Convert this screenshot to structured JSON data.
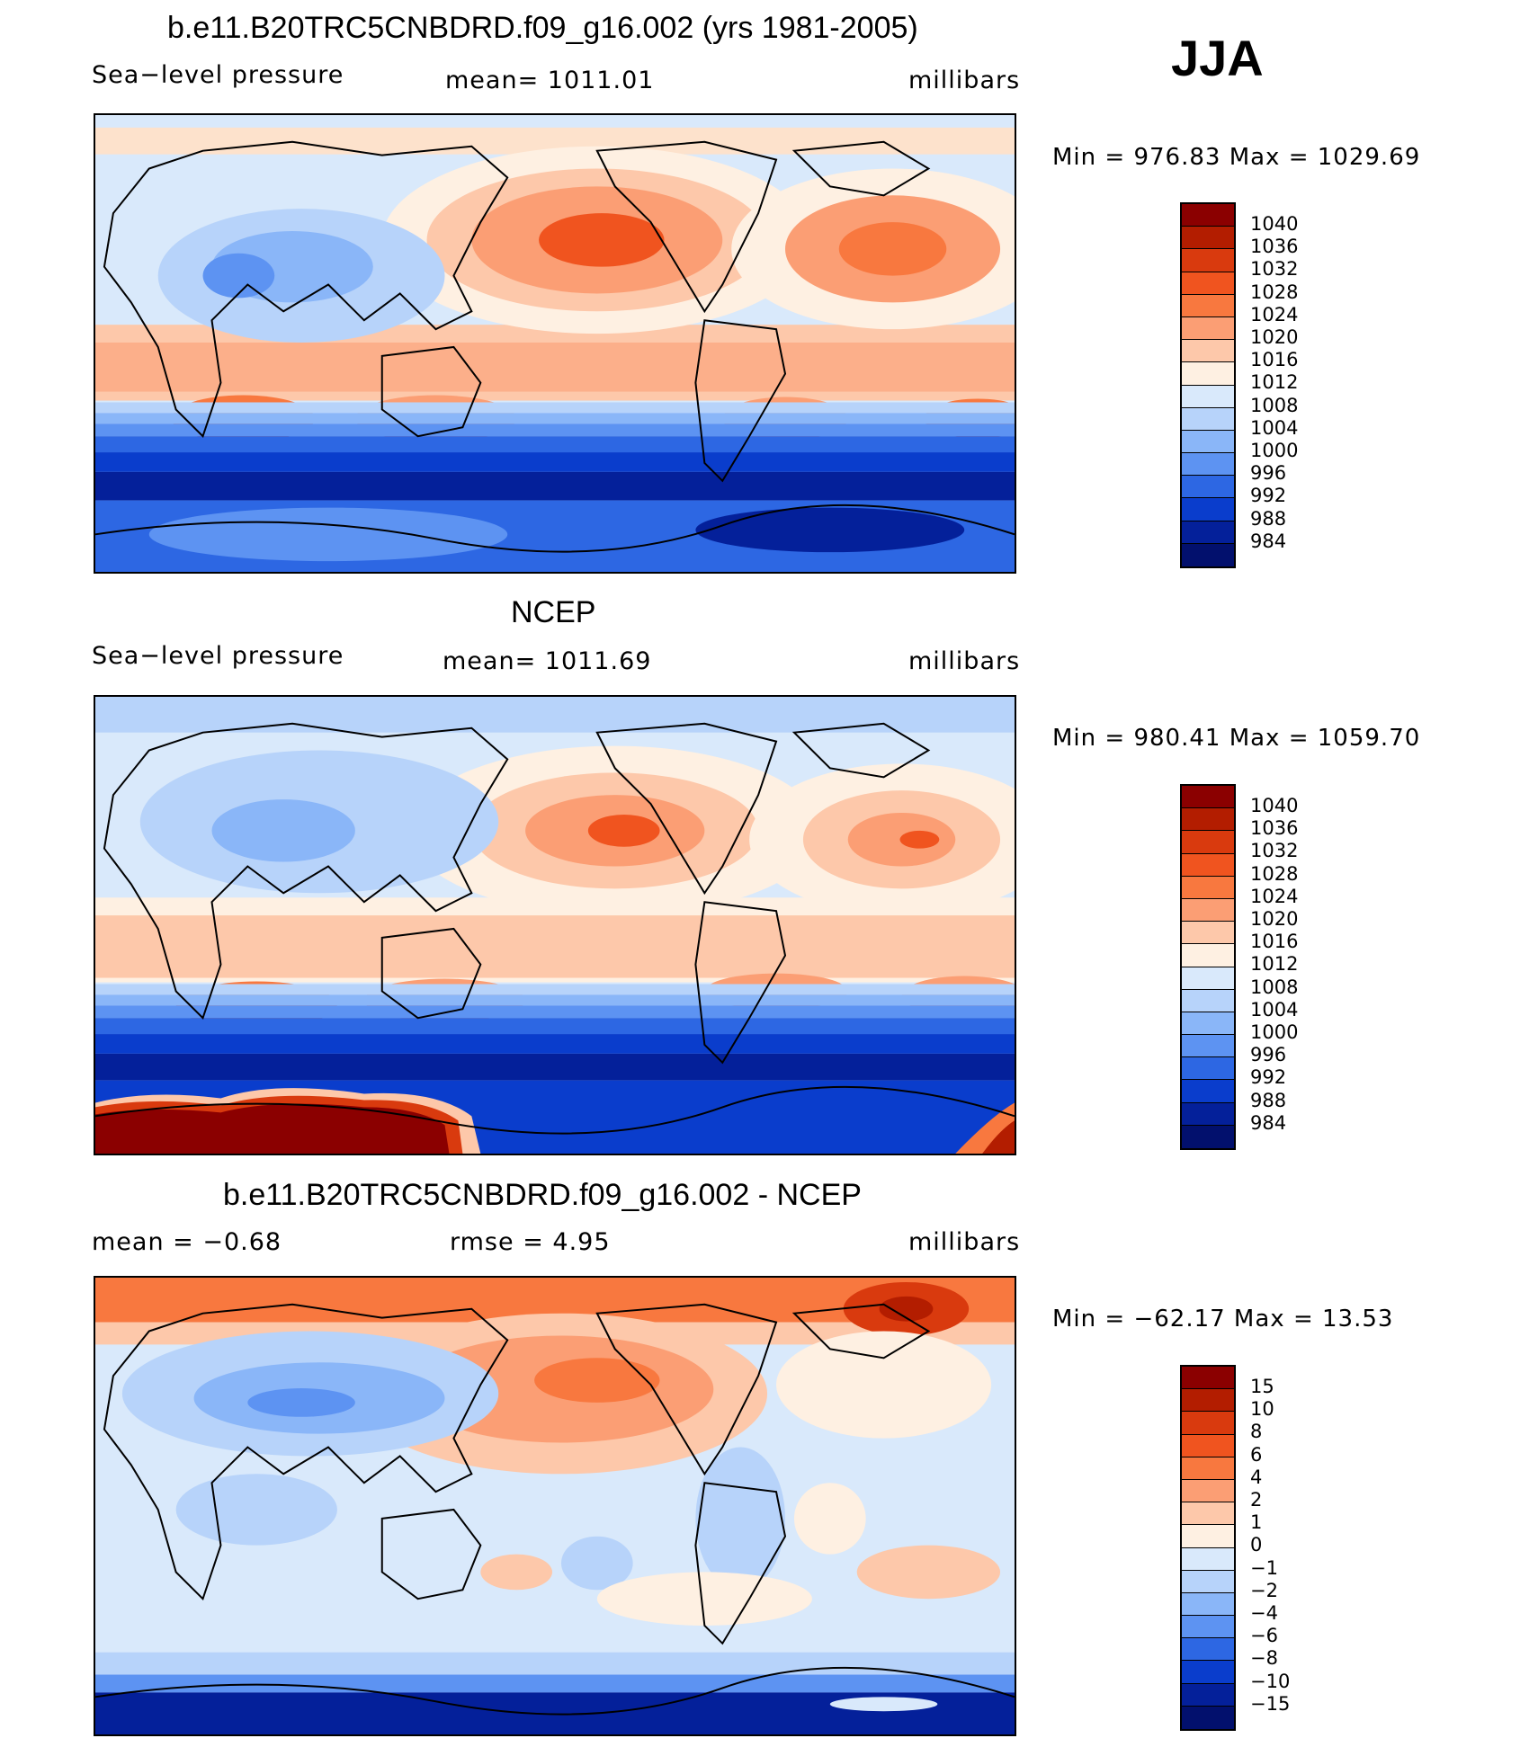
{
  "season": "JJA",
  "panels": [
    {
      "title": "b.e11.B20TRC5CNBDRD.f09_g16.002 (yrs 1981-2005)",
      "left": "Sea−level pressure",
      "center": "mean=  1011.01",
      "right": "millibars",
      "minmax": "Min  =  976.83  Max  =  1029.69",
      "levels": [
        "1040",
        "1036",
        "1032",
        "1028",
        "1024",
        "1020",
        "1016",
        "1012",
        "1008",
        "1004",
        "1000",
        "996",
        "992",
        "988",
        "984"
      ]
    },
    {
      "title": "NCEP",
      "left": "Sea−level pressure",
      "center": "mean=  1011.69",
      "right": "millibars",
      "minmax": "Min  =  980.41  Max  =  1059.70",
      "levels": [
        "1040",
        "1036",
        "1032",
        "1028",
        "1024",
        "1020",
        "1016",
        "1012",
        "1008",
        "1004",
        "1000",
        "996",
        "992",
        "988",
        "984"
      ]
    },
    {
      "title": "b.e11.B20TRC5CNBDRD.f09_g16.002 - NCEP",
      "left": "mean  =    −0.68",
      "center": "rmse  =     4.95",
      "right": "millibars",
      "minmax": "Min  =  −62.17  Max  =    13.53",
      "levels": [
        "15",
        "10",
        "8",
        "6",
        "4",
        "2",
        "1",
        "0",
        "−1",
        "−2",
        "−4",
        "−6",
        "−8",
        "−10",
        "−15"
      ]
    }
  ],
  "colors": [
    "#8b0000",
    "#b31d00",
    "#d93a0e",
    "#f0541f",
    "#f8783f",
    "#fb9e74",
    "#fdc8aa",
    "#fef0e2",
    "#d9e9fb",
    "#b7d3fa",
    "#8ab6f8",
    "#5d93f2",
    "#2d67e3",
    "#0a3dcc",
    "#04209a",
    "#02106d"
  ]
}
